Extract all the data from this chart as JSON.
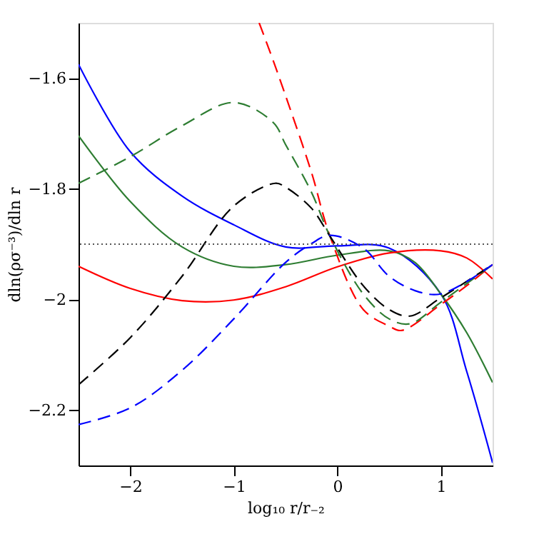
{
  "chart_data": {
    "type": "line",
    "xlabel": "log₁₀ r/r₋₂",
    "ylabel": "dln(ρσ⁻³)/dln r",
    "xlim": [
      -2.5,
      1.5
    ],
    "xticks": [
      -2,
      -1,
      0,
      1
    ],
    "ylim": [
      -2.3,
      -1.5
    ],
    "yticks": [
      -2.2,
      -2,
      -1.8,
      -1.6
    ],
    "grid": false,
    "marker": "none",
    "ref_lines": [
      {
        "axis": "y",
        "value": -1.9,
        "color": "#555555",
        "line_style": "dotted"
      }
    ],
    "series": [
      {
        "color": "#0000ff",
        "line_style": "solid",
        "x": [
          -2.5,
          -2,
          -1.5,
          -1,
          -0.5,
          0,
          0.5,
          1,
          1.25,
          1.5
        ],
        "values": [
          -1.575,
          -1.733,
          -1.813,
          -1.865,
          -1.905,
          -1.903,
          -1.907,
          -1.99,
          -2.13,
          -2.295
        ]
      },
      {
        "color": "#2e7d32",
        "line_style": "solid",
        "x": [
          -2.5,
          -2,
          -1.5,
          -1,
          -0.5,
          0,
          0.5,
          0.75,
          1,
          1.25,
          1.5
        ],
        "values": [
          -1.704,
          -1.823,
          -1.905,
          -1.94,
          -1.937,
          -1.92,
          -1.912,
          -1.933,
          -1.99,
          -2.06,
          -2.15
        ]
      },
      {
        "color": "#ff0000",
        "line_style": "solid",
        "x": [
          -2.5,
          -2,
          -1.5,
          -1,
          -0.5,
          0,
          0.5,
          1,
          1.25,
          1.5
        ],
        "values": [
          -1.94,
          -1.98,
          -2.002,
          -2.001,
          -1.977,
          -1.941,
          -1.916,
          -1.912,
          -1.925,
          -1.963
        ]
      },
      {
        "color": "#ff0000",
        "line_style": "dashed",
        "x": [
          -0.755,
          -0.62,
          -0.477,
          -0.25,
          -0.07,
          0.25,
          0.5,
          0.62,
          1,
          1.25,
          1.5
        ],
        "values": [
          -1.5,
          -1.568,
          -1.644,
          -1.77,
          -1.886,
          -2.018,
          -2.048,
          -2.056,
          -2.009,
          -1.975,
          -1.937
        ]
      },
      {
        "color": "#2e7d32",
        "line_style": "dashed",
        "x": [
          -2.5,
          -2,
          -1.5,
          -1,
          -0.62,
          -0.5,
          -0.25,
          -0.07,
          0.25,
          0.5,
          0.7,
          1,
          1.5
        ],
        "values": [
          -1.79,
          -1.742,
          -1.686,
          -1.644,
          -1.68,
          -1.72,
          -1.806,
          -1.886,
          -1.99,
          -2.035,
          -2.044,
          -2.005,
          -1.937
        ]
      },
      {
        "color": "#000000",
        "line_style": "dashed",
        "x": [
          -2.5,
          -2,
          -1.5,
          -1,
          -0.6,
          -0.5,
          -0.25,
          -0.07,
          0.25,
          0.5,
          0.7,
          1,
          1.5
        ],
        "values": [
          -2.154,
          -2.069,
          -1.958,
          -1.831,
          -1.79,
          -1.797,
          -1.835,
          -1.886,
          -1.975,
          -2.018,
          -2.03,
          -1.997,
          -1.937
        ]
      },
      {
        "color": "#0000ff",
        "line_style": "dashed",
        "x": [
          -2.5,
          -2,
          -1.5,
          -1,
          -0.5,
          -0.25,
          -0.07,
          0.25,
          0.5,
          0.75,
          1,
          1.5
        ],
        "values": [
          -2.226,
          -2.196,
          -2.128,
          -2.035,
          -1.933,
          -1.899,
          -1.884,
          -1.907,
          -1.958,
          -1.984,
          -1.99,
          -1.937
        ]
      }
    ]
  }
}
